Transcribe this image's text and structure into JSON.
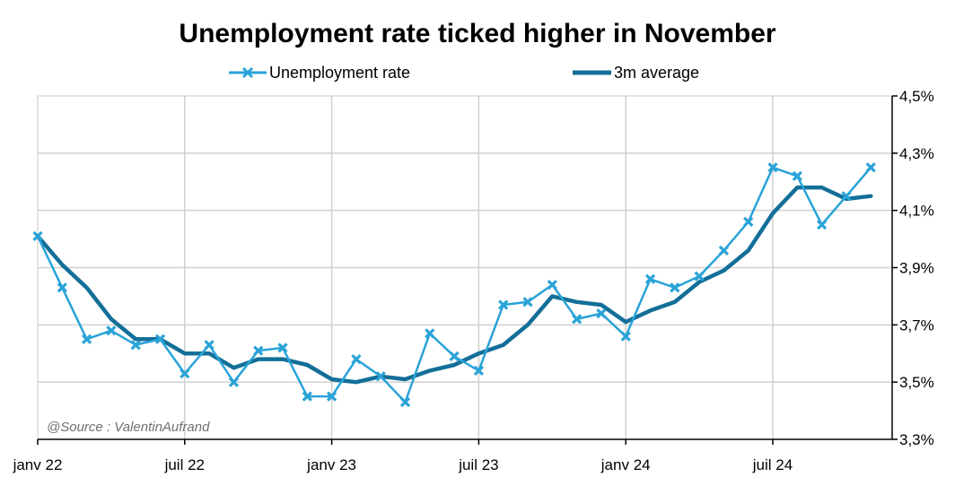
{
  "chart_data": {
    "type": "line",
    "title": "Unemployment rate ticked higher in November",
    "source_note": "@Source : ValentinAufrand",
    "x": [
      "2022-01",
      "2022-02",
      "2022-03",
      "2022-04",
      "2022-05",
      "2022-06",
      "2022-07",
      "2022-08",
      "2022-09",
      "2022-10",
      "2022-11",
      "2022-12",
      "2023-01",
      "2023-02",
      "2023-03",
      "2023-04",
      "2023-05",
      "2023-06",
      "2023-07",
      "2023-08",
      "2023-09",
      "2023-10",
      "2023-11",
      "2023-12",
      "2024-01",
      "2024-02",
      "2024-03",
      "2024-04",
      "2024-05",
      "2024-06",
      "2024-07",
      "2024-08",
      "2024-09",
      "2024-10",
      "2024-11"
    ],
    "x_tick_labels": [
      "janv 22",
      "juil 22",
      "janv 23",
      "juil 23",
      "janv 24",
      "juil 24"
    ],
    "x_tick_positions": [
      "2022-01",
      "2022-07",
      "2023-01",
      "2023-07",
      "2024-01",
      "2024-07"
    ],
    "y_tick_labels": [
      "3,3%",
      "3,5%",
      "3,7%",
      "3,9%",
      "4,1%",
      "4,3%",
      "4,5%"
    ],
    "ylim": [
      3.3,
      4.5
    ],
    "y_axis_side": "right",
    "grid": true,
    "legend_position": "top",
    "series": [
      {
        "name": "Unemployment rate",
        "color": "#2aa3d8",
        "marker": "x",
        "values": [
          4.01,
          3.83,
          3.65,
          3.68,
          3.63,
          3.65,
          3.53,
          3.63,
          3.5,
          3.61,
          3.62,
          3.45,
          3.45,
          3.58,
          3.52,
          3.43,
          3.67,
          3.59,
          3.54,
          3.77,
          3.78,
          3.84,
          3.72,
          3.74,
          3.66,
          3.86,
          3.83,
          3.87,
          3.96,
          4.06,
          4.25,
          4.22,
          4.05,
          4.15,
          4.25
        ]
      },
      {
        "name": "3m average",
        "color": "#136f98",
        "marker": "none",
        "values": [
          4.01,
          3.91,
          3.83,
          3.72,
          3.65,
          3.65,
          3.6,
          3.6,
          3.55,
          3.58,
          3.58,
          3.56,
          3.51,
          3.5,
          3.52,
          3.51,
          3.54,
          3.56,
          3.6,
          3.63,
          3.7,
          3.8,
          3.78,
          3.77,
          3.71,
          3.75,
          3.78,
          3.85,
          3.89,
          3.96,
          4.09,
          4.18,
          4.18,
          4.14,
          4.15
        ]
      }
    ]
  }
}
